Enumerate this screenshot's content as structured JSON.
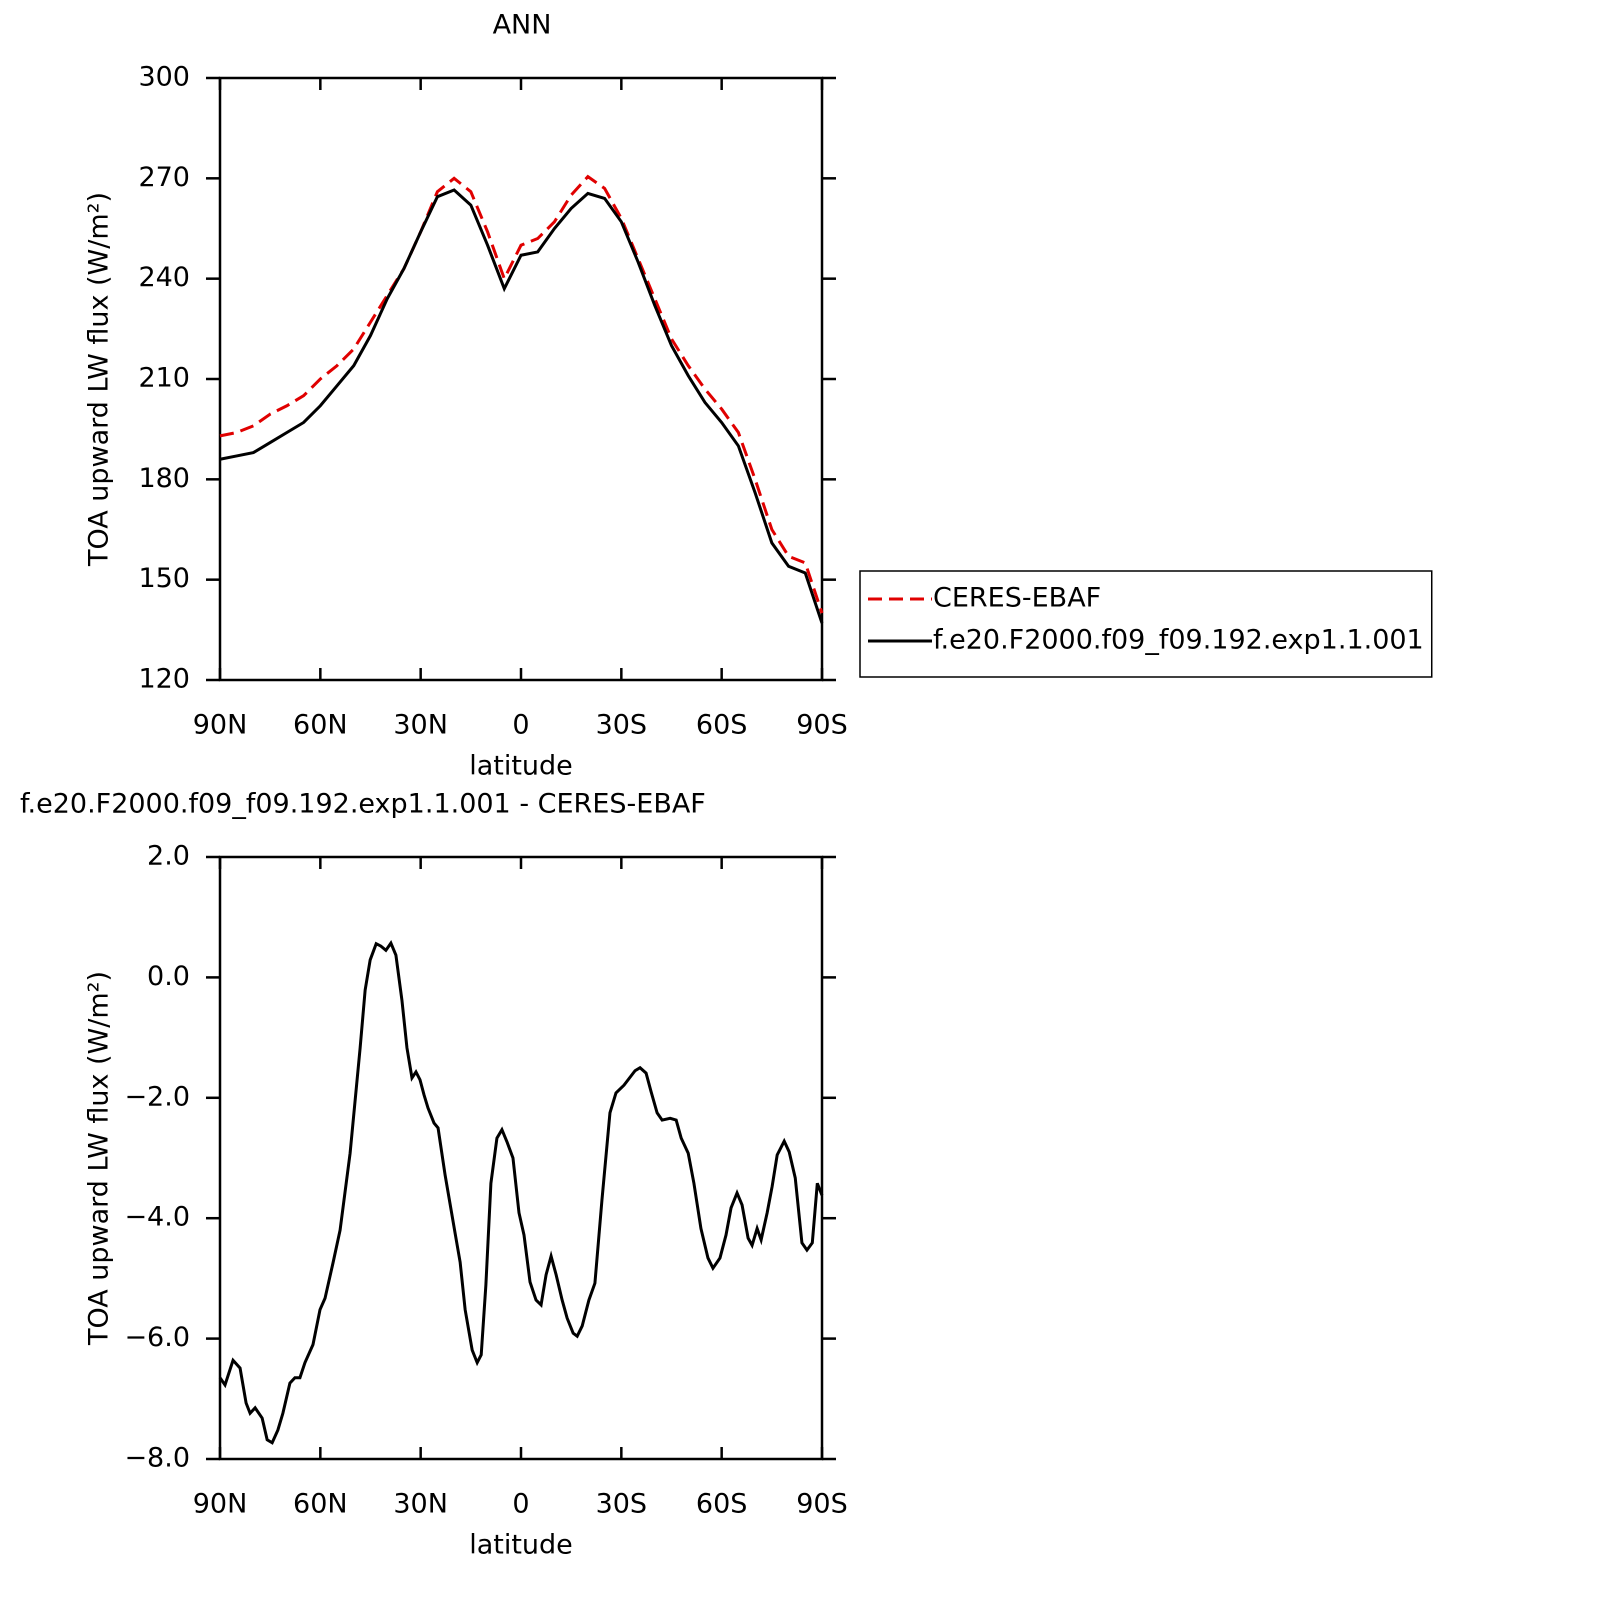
{
  "chart_data": [
    {
      "type": "line",
      "title": "ANN",
      "xlabel": "latitude",
      "ylabel": "TOA upward LW flux (W/m²)",
      "x": [
        90,
        85,
        80,
        75,
        70,
        65,
        60,
        55,
        50,
        45,
        40,
        35,
        30,
        25,
        20,
        15,
        10,
        5,
        0,
        -5,
        -10,
        -15,
        -20,
        -25,
        -30,
        -35,
        -40,
        -45,
        -50,
        -55,
        -60,
        -65,
        -70,
        -75,
        -80,
        -85,
        -90
      ],
      "series": [
        {
          "name": "CERES-EBAF",
          "color": "#e00000",
          "linestyle": "dashed",
          "values": [
            193,
            194,
            196,
            199.5,
            202,
            205,
            210,
            214,
            219,
            227,
            235,
            243,
            254,
            266,
            270,
            266,
            254,
            240,
            250,
            252,
            257,
            265,
            270.5,
            267,
            258,
            246,
            234,
            222,
            214,
            207,
            201,
            194,
            180,
            165,
            157,
            155,
            140
          ]
        },
        {
          "name": "f.e20.F2000.f09_f09.192.exp1.1.001",
          "color": "#000000",
          "linestyle": "solid",
          "values": [
            186,
            187,
            188,
            191,
            194,
            197,
            202,
            208,
            214,
            223,
            234,
            243,
            254,
            264.5,
            266.5,
            262,
            250,
            237,
            247,
            248,
            255,
            261,
            265.5,
            264,
            257,
            245,
            232,
            220,
            211,
            203,
            197,
            190,
            176,
            161,
            154,
            152,
            137
          ]
        }
      ],
      "xlim": [
        90,
        -90
      ],
      "xticks": [
        {
          "value": 90,
          "label": "90N"
        },
        {
          "value": 60,
          "label": "60N"
        },
        {
          "value": 30,
          "label": "30N"
        },
        0,
        {
          "value": -30,
          "label": "30S"
        },
        {
          "value": -60,
          "label": "60S"
        },
        {
          "value": -90,
          "label": "90S"
        }
      ],
      "ylim": [
        120,
        300
      ],
      "yticks": [
        120,
        150,
        180,
        210,
        240,
        270,
        300
      ],
      "legend": "right"
    },
    {
      "type": "line",
      "title": "f.e20.F2000.f09_f09.192.exp1.1.001 - CERES-EBAF",
      "xlabel": "latitude",
      "ylabel": "TOA upward LW flux (W/m²)",
      "x": [
        90,
        88.5,
        86.1,
        84,
        82.2,
        81,
        79.5,
        77.4,
        75.9,
        74.4,
        72.7,
        71.2,
        69.1,
        67.6,
        66.1,
        64.6,
        62.2,
        60.1,
        58.6,
        56.2,
        54.1,
        51.1,
        48.1,
        46.6,
        45.1,
        43.3,
        41.9,
        40.4,
        38.9,
        37.4,
        35.6,
        34.1,
        32.6,
        31.4,
        30.2,
        29,
        27.8,
        26,
        24.8,
        22.7,
        19.7,
        18.2,
        16.7,
        14.6,
        13.1,
        11.9,
        10.5,
        9,
        7.2,
        5.7,
        4.2,
        2.4,
        0.6,
        -0.9,
        -2.7,
        -4.5,
        -6,
        -7.5,
        -9,
        -10.5,
        -12.3,
        -13.8,
        -15.6,
        -16.8,
        -18.3,
        -20.3,
        -22.1,
        -24.2,
        -26.6,
        -28.4,
        -30.8,
        -34.1,
        -35.6,
        -37.4,
        -38.9,
        -40.7,
        -42.2,
        -44.6,
        -46.4,
        -47.9,
        -50,
        -51.7,
        -53.8,
        -55.9,
        -57.4,
        -59.5,
        -61.3,
        -62.8,
        -64.6,
        -66.1,
        -67.9,
        -69.1,
        -70.6,
        -71.8,
        -73.6,
        -75.1,
        -76.6,
        -78.7,
        -80.2,
        -82,
        -84,
        -85.5,
        -87.1,
        -88.6,
        -90
      ],
      "color": "#000000",
      "values": [
        -6.65,
        -6.77,
        -6.36,
        -6.49,
        -7.07,
        -7.24,
        -7.15,
        -7.32,
        -7.68,
        -7.73,
        -7.52,
        -7.24,
        -6.74,
        -6.65,
        -6.65,
        -6.4,
        -6.1,
        -5.52,
        -5.33,
        -4.74,
        -4.2,
        -2.92,
        -1.17,
        -0.21,
        0.29,
        0.56,
        0.52,
        0.45,
        0.57,
        0.37,
        -0.38,
        -1.17,
        -1.67,
        -1.57,
        -1.7,
        -1.95,
        -2.17,
        -2.42,
        -2.5,
        -3.28,
        -4.25,
        -4.73,
        -5.52,
        -6.19,
        -6.4,
        -6.27,
        -5.11,
        -3.42,
        -2.67,
        -2.53,
        -2.73,
        -3,
        -3.91,
        -4.28,
        -5.06,
        -5.36,
        -5.44,
        -4.94,
        -4.63,
        -4.94,
        -5.36,
        -5.66,
        -5.91,
        -5.96,
        -5.79,
        -5.36,
        -5.08,
        -3.7,
        -2.25,
        -1.92,
        -1.79,
        -1.55,
        -1.5,
        -1.59,
        -1.9,
        -2.25,
        -2.37,
        -2.34,
        -2.37,
        -2.67,
        -2.92,
        -3.42,
        -4.17,
        -4.66,
        -4.83,
        -4.66,
        -4.28,
        -3.83,
        -3.58,
        -3.78,
        -4.33,
        -4.45,
        -4.17,
        -4.36,
        -3.91,
        -3.47,
        -2.95,
        -2.72,
        -2.9,
        -3.33,
        -4.41,
        -4.53,
        -4.41,
        -3.42,
        -3.62
      ],
      "xlim": [
        90,
        -90
      ],
      "xticks": [
        {
          "value": 90,
          "label": "90N"
        },
        {
          "value": 60,
          "label": "60N"
        },
        {
          "value": 30,
          "label": "30N"
        },
        0,
        {
          "value": -30,
          "label": "30S"
        },
        {
          "value": -60,
          "label": "60S"
        },
        {
          "value": -90,
          "label": "90S"
        }
      ],
      "ylim": [
        -8,
        2
      ],
      "yticks": [
        {
          "value": -8,
          "label": "−8.0"
        },
        {
          "value": -6,
          "label": "−6.0"
        },
        {
          "value": -4,
          "label": "−4.0"
        },
        {
          "value": -2,
          "label": "−2.0"
        },
        {
          "value": 0,
          "label": "0.0"
        },
        {
          "value": 2,
          "label": "2.0"
        }
      ]
    }
  ]
}
